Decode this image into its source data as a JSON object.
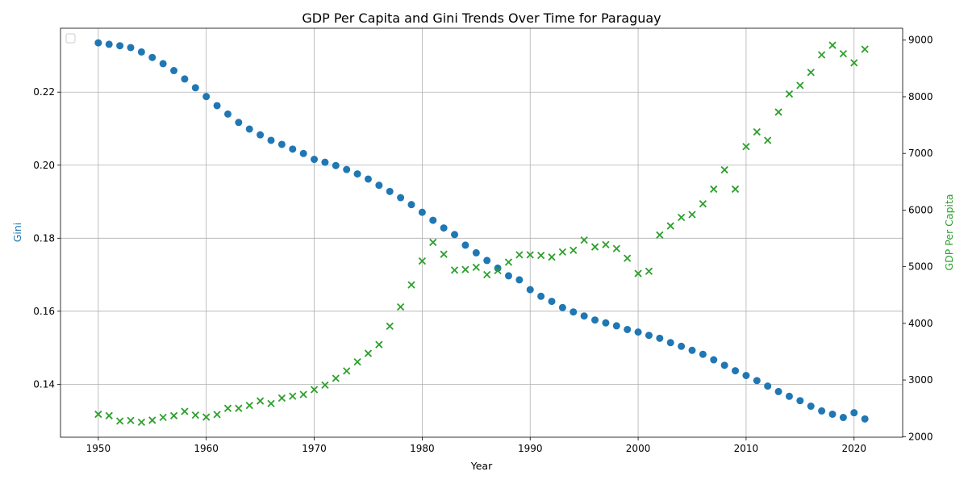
{
  "chart_data": {
    "type": "scatter",
    "title": "GDP Per Capita and Gini Trends Over Time for Paraguay",
    "xlabel": "Year",
    "ylabel_left": "Gini",
    "ylabel_right": "GDP Per Capita",
    "xlim": [
      1946.5,
      2024.5
    ],
    "ylim_left": [
      0.1255,
      0.2375
    ],
    "ylim_right": [
      1990,
      9210
    ],
    "x_ticks": [
      1950,
      1960,
      1970,
      1980,
      1990,
      2000,
      2010,
      2020
    ],
    "y_left_ticks": [
      0.14,
      0.16,
      0.18,
      0.2,
      0.22
    ],
    "y_left_tick_labels": [
      "0.14",
      "0.16",
      "0.18",
      "0.20",
      "0.22"
    ],
    "y_right_ticks": [
      2000,
      3000,
      4000,
      5000,
      6000,
      7000,
      8000,
      9000
    ],
    "grid": true,
    "legend": "top-left (empty)",
    "colors": {
      "gini": "#1f77b4",
      "gdp": "#2ca02c"
    },
    "x": [
      1950,
      1951,
      1952,
      1953,
      1954,
      1955,
      1956,
      1957,
      1958,
      1959,
      1960,
      1961,
      1962,
      1963,
      1964,
      1965,
      1966,
      1967,
      1968,
      1969,
      1970,
      1971,
      1972,
      1973,
      1974,
      1975,
      1976,
      1977,
      1978,
      1979,
      1980,
      1981,
      1982,
      1983,
      1984,
      1985,
      1986,
      1987,
      1988,
      1989,
      1990,
      1991,
      1992,
      1993,
      1994,
      1995,
      1996,
      1997,
      1998,
      1999,
      2000,
      2001,
      2002,
      2003,
      2004,
      2005,
      2006,
      2007,
      2008,
      2009,
      2010,
      2011,
      2012,
      2013,
      2014,
      2015,
      2016,
      2017,
      2018,
      2019,
      2020,
      2021
    ],
    "series": [
      {
        "axis": "left",
        "marker": "circle",
        "values": [
          0.2335,
          0.2331,
          0.2327,
          0.2322,
          0.231,
          0.2295,
          0.2278,
          0.2259,
          0.2236,
          0.2212,
          0.2188,
          0.2163,
          0.214,
          0.2117,
          0.2099,
          0.2083,
          0.2068,
          0.2057,
          0.2044,
          0.2032,
          0.2016,
          0.2008,
          0.1999,
          0.1988,
          0.1976,
          0.1962,
          0.1945,
          0.1928,
          0.1911,
          0.1892,
          0.1871,
          0.1849,
          0.1828,
          0.181,
          0.1781,
          0.176,
          0.1739,
          0.1718,
          0.1697,
          0.1686,
          0.1659,
          0.1641,
          0.1627,
          0.161,
          0.1598,
          0.1587,
          0.1576,
          0.1568,
          0.156,
          0.155,
          0.1543,
          0.1534,
          0.1526,
          0.1514,
          0.1504,
          0.1493,
          0.1482,
          0.1467,
          0.1452,
          0.1437,
          0.1424,
          0.141,
          0.1395,
          0.138,
          0.1367,
          0.1355,
          0.134,
          0.1327,
          0.1318,
          0.1309,
          0.1322,
          0.1305
        ]
      },
      {
        "axis": "right",
        "marker": "x",
        "values": [
          2395,
          2370,
          2275,
          2285,
          2255,
          2290,
          2340,
          2370,
          2445,
          2380,
          2345,
          2390,
          2500,
          2500,
          2550,
          2630,
          2585,
          2680,
          2715,
          2745,
          2830,
          2910,
          3030,
          3160,
          3320,
          3470,
          3625,
          3950,
          4290,
          4680,
          5100,
          5430,
          5220,
          4940,
          4950,
          4990,
          4860,
          4930,
          5080,
          5210,
          5210,
          5200,
          5170,
          5260,
          5290,
          5470,
          5350,
          5390,
          5320,
          5150,
          4880,
          4920,
          5560,
          5720,
          5870,
          5920,
          6110,
          6370,
          6710,
          6370,
          7120,
          7380,
          7230,
          7730,
          8050,
          8200,
          8430,
          8740,
          8910,
          8760,
          8600,
          8840
        ]
      }
    ]
  }
}
